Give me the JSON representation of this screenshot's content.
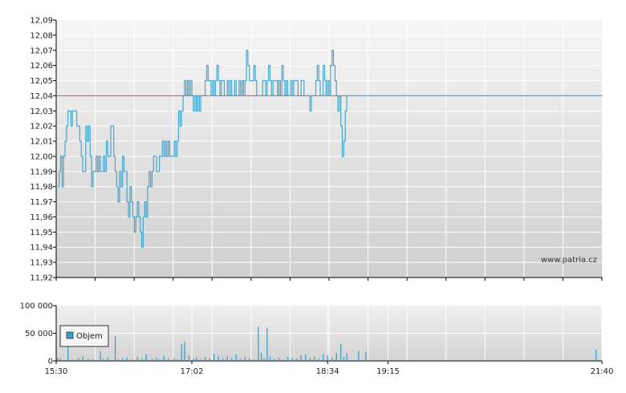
{
  "watermark": "www.patria.cz",
  "colors": {
    "price": "#4aa6cc",
    "reference": "#e04a3a",
    "volume": "#3aa0c8",
    "grid": "#ffffff",
    "bg_top": "#f4f4f4",
    "bg_bottom": "#d2d2d2"
  },
  "chart_data": [
    {
      "type": "line",
      "title": "",
      "xlabel": "",
      "ylabel": "",
      "x_ticks": [
        "15:30",
        "17:02",
        "18:34",
        "19:15",
        "21:40"
      ],
      "y_ticks": [
        "12,09",
        "12,08",
        "12,07",
        "12,06",
        "12,05",
        "12,04",
        "12,03",
        "12,02",
        "12,01",
        "12,00",
        "11,99",
        "11,98",
        "11,97",
        "11,96",
        "11,95",
        "11,94",
        "11,93",
        "11,92"
      ],
      "ylim": [
        11.92,
        12.09
      ],
      "xlim": [
        "15:30",
        "21:40"
      ],
      "grid": true,
      "reference_line": 12.04,
      "series": [
        {
          "points": [
            [
              "15:30",
              11.98
            ],
            [
              "15:32",
              11.99
            ],
            [
              "15:33",
              12.0
            ],
            [
              "15:34",
              11.98
            ],
            [
              "15:35",
              12.0
            ],
            [
              "15:36",
              12.01
            ],
            [
              "15:37",
              12.02
            ],
            [
              "15:38",
              12.03
            ],
            [
              "15:40",
              12.02
            ],
            [
              "15:41",
              12.03
            ],
            [
              "15:43",
              12.03
            ],
            [
              "15:44",
              12.02
            ],
            [
              "15:45",
              12.02
            ],
            [
              "15:46",
              12.01
            ],
            [
              "15:47",
              12.0
            ],
            [
              "15:48",
              11.99
            ],
            [
              "15:49",
              11.99
            ],
            [
              "15:50",
              12.02
            ],
            [
              "15:51",
              12.01
            ],
            [
              "15:52",
              12.02
            ],
            [
              "15:53",
              12.0
            ],
            [
              "15:54",
              11.98
            ],
            [
              "15:55",
              11.99
            ],
            [
              "15:56",
              11.99
            ],
            [
              "15:57",
              12.0
            ],
            [
              "15:58",
              11.99
            ],
            [
              "15:59",
              12.0
            ],
            [
              "16:00",
              11.99
            ],
            [
              "16:02",
              12.0
            ],
            [
              "16:03",
              11.99
            ],
            [
              "16:04",
              12.01
            ],
            [
              "16:05",
              12.0
            ],
            [
              "16:07",
              12.02
            ],
            [
              "16:08",
              12.02
            ],
            [
              "16:09",
              12.0
            ],
            [
              "16:10",
              11.99
            ],
            [
              "16:11",
              11.98
            ],
            [
              "16:12",
              11.97
            ],
            [
              "16:13",
              11.99
            ],
            [
              "16:14",
              11.98
            ],
            [
              "16:15",
              12.0
            ],
            [
              "16:16",
              11.99
            ],
            [
              "16:18",
              11.97
            ],
            [
              "16:19",
              11.96
            ],
            [
              "16:20",
              11.98
            ],
            [
              "16:21",
              11.97
            ],
            [
              "16:22",
              11.96
            ],
            [
              "16:23",
              11.95
            ],
            [
              "16:24",
              11.96
            ],
            [
              "16:25",
              11.97
            ],
            [
              "16:26",
              11.96
            ],
            [
              "16:27",
              11.95
            ],
            [
              "16:28",
              11.94
            ],
            [
              "16:29",
              11.96
            ],
            [
              "16:30",
              11.97
            ],
            [
              "16:31",
              11.96
            ],
            [
              "16:32",
              11.98
            ],
            [
              "16:33",
              11.99
            ],
            [
              "16:34",
              11.98
            ],
            [
              "16:35",
              11.99
            ],
            [
              "16:36",
              12.0
            ],
            [
              "16:38",
              11.99
            ],
            [
              "16:40",
              12.0
            ],
            [
              "16:41",
              12.0
            ],
            [
              "16:42",
              12.01
            ],
            [
              "16:43",
              12.0
            ],
            [
              "16:44",
              12.01
            ],
            [
              "16:45",
              12.0
            ],
            [
              "16:46",
              12.01
            ],
            [
              "16:47",
              12.0
            ],
            [
              "16:48",
              12.0
            ],
            [
              "16:50",
              12.01
            ],
            [
              "16:51",
              12.0
            ],
            [
              "16:52",
              12.01
            ],
            [
              "16:53",
              12.03
            ],
            [
              "16:54",
              12.02
            ],
            [
              "16:55",
              12.03
            ],
            [
              "16:56",
              12.04
            ],
            [
              "16:57",
              12.05
            ],
            [
              "16:58",
              12.04
            ],
            [
              "16:59",
              12.05
            ],
            [
              "17:00",
              12.04
            ],
            [
              "17:01",
              12.05
            ],
            [
              "17:02",
              12.04
            ],
            [
              "17:03",
              12.03
            ],
            [
              "17:04",
              12.04
            ],
            [
              "17:05",
              12.03
            ],
            [
              "17:06",
              12.04
            ],
            [
              "17:07",
              12.03
            ],
            [
              "17:08",
              12.04
            ],
            [
              "17:09",
              12.04
            ],
            [
              "17:10",
              12.04
            ],
            [
              "17:11",
              12.05
            ],
            [
              "17:12",
              12.06
            ],
            [
              "17:13",
              12.05
            ],
            [
              "17:14",
              12.05
            ],
            [
              "17:15",
              12.04
            ],
            [
              "17:16",
              12.05
            ],
            [
              "17:17",
              12.04
            ],
            [
              "17:18",
              12.05
            ],
            [
              "17:19",
              12.06
            ],
            [
              "17:20",
              12.05
            ],
            [
              "17:21",
              12.04
            ],
            [
              "17:22",
              12.05
            ],
            [
              "17:24",
              12.04
            ],
            [
              "17:26",
              12.05
            ],
            [
              "17:27",
              12.04
            ],
            [
              "17:28",
              12.05
            ],
            [
              "17:29",
              12.04
            ],
            [
              "17:30",
              12.04
            ],
            [
              "17:31",
              12.05
            ],
            [
              "17:32",
              12.04
            ],
            [
              "17:33",
              12.04
            ],
            [
              "17:34",
              12.05
            ],
            [
              "17:35",
              12.04
            ],
            [
              "17:36",
              12.05
            ],
            [
              "17:37",
              12.04
            ],
            [
              "17:38",
              12.05
            ],
            [
              "17:39",
              12.07
            ],
            [
              "17:40",
              12.06
            ],
            [
              "17:41",
              12.05
            ],
            [
              "17:42",
              12.05
            ],
            [
              "17:44",
              12.06
            ],
            [
              "17:45",
              12.05
            ],
            [
              "17:46",
              12.04
            ],
            [
              "17:48",
              12.04
            ],
            [
              "17:50",
              12.05
            ],
            [
              "17:52",
              12.04
            ],
            [
              "17:53",
              12.05
            ],
            [
              "17:54",
              12.06
            ],
            [
              "17:55",
              12.05
            ],
            [
              "17:56",
              12.04
            ],
            [
              "17:57",
              12.05
            ],
            [
              "17:58",
              12.05
            ],
            [
              "18:00",
              12.04
            ],
            [
              "18:01",
              12.05
            ],
            [
              "18:02",
              12.04
            ],
            [
              "18:03",
              12.06
            ],
            [
              "18:04",
              12.05
            ],
            [
              "18:05",
              12.04
            ],
            [
              "18:06",
              12.05
            ],
            [
              "18:07",
              12.04
            ],
            [
              "18:08",
              12.04
            ],
            [
              "18:09",
              12.05
            ],
            [
              "18:10",
              12.04
            ],
            [
              "18:11",
              12.05
            ],
            [
              "18:12",
              12.05
            ],
            [
              "18:14",
              12.04
            ],
            [
              "18:16",
              12.05
            ],
            [
              "18:18",
              12.04
            ],
            [
              "18:20",
              12.04
            ],
            [
              "18:21",
              12.04
            ],
            [
              "18:22",
              12.03
            ],
            [
              "18:23",
              12.04
            ],
            [
              "18:25",
              12.04
            ],
            [
              "18:26",
              12.05
            ],
            [
              "18:27",
              12.06
            ],
            [
              "18:28",
              12.05
            ],
            [
              "18:29",
              12.04
            ],
            [
              "18:30",
              12.04
            ],
            [
              "18:31",
              12.06
            ],
            [
              "18:32",
              12.05
            ],
            [
              "18:33",
              12.04
            ],
            [
              "18:34",
              12.05
            ],
            [
              "18:35",
              12.04
            ],
            [
              "18:36",
              12.06
            ],
            [
              "18:37",
              12.07
            ],
            [
              "18:38",
              12.06
            ],
            [
              "18:39",
              12.05
            ],
            [
              "18:40",
              12.04
            ],
            [
              "18:41",
              12.03
            ],
            [
              "18:42",
              12.04
            ],
            [
              "18:43",
              12.02
            ],
            [
              "18:44",
              12.0
            ],
            [
              "18:45",
              12.01
            ],
            [
              "18:46",
              12.03
            ],
            [
              "18:47",
              12.04
            ],
            [
              "21:40",
              12.04
            ]
          ]
        }
      ]
    },
    {
      "type": "bar",
      "title": "",
      "x_ticks": [
        "15:30",
        "17:02",
        "18:34",
        "19:15",
        "21:40"
      ],
      "y_ticks": [
        "100 000",
        "50 000",
        "0"
      ],
      "ylim": [
        0,
        100000
      ],
      "xlim": [
        "15:30",
        "21:40"
      ],
      "grid": true,
      "legend": {
        "label": "Objem",
        "position": "top-left"
      },
      "series": [
        {
          "name": "Objem",
          "points": [
            [
              "15:31",
              6000
            ],
            [
              "15:33",
              4000
            ],
            [
              "15:38",
              35000
            ],
            [
              "15:41",
              3000
            ],
            [
              "15:45",
              5000
            ],
            [
              "15:48",
              8000
            ],
            [
              "15:52",
              4000
            ],
            [
              "15:55",
              3000
            ],
            [
              "16:00",
              18000
            ],
            [
              "16:02",
              4000
            ],
            [
              "16:05",
              7000
            ],
            [
              "16:10",
              45000
            ],
            [
              "16:12",
              3000
            ],
            [
              "16:15",
              5000
            ],
            [
              "16:18",
              6000
            ],
            [
              "16:22",
              3000
            ],
            [
              "16:25",
              8000
            ],
            [
              "16:28",
              5000
            ],
            [
              "16:31",
              12000
            ],
            [
              "16:35",
              4000
            ],
            [
              "16:38",
              6000
            ],
            [
              "16:40",
              3000
            ],
            [
              "16:43",
              9000
            ],
            [
              "16:46",
              4000
            ],
            [
              "16:50",
              5000
            ],
            [
              "16:52",
              3000
            ],
            [
              "16:55",
              30000
            ],
            [
              "16:57",
              34000
            ],
            [
              "17:00",
              10000
            ],
            [
              "17:03",
              4000
            ],
            [
              "17:05",
              6000
            ],
            [
              "17:08",
              2000
            ],
            [
              "17:11",
              7000
            ],
            [
              "17:14",
              4000
            ],
            [
              "17:17",
              13000
            ],
            [
              "17:20",
              8000
            ],
            [
              "17:23",
              5000
            ],
            [
              "17:26",
              9000
            ],
            [
              "17:29",
              6000
            ],
            [
              "17:32",
              12000
            ],
            [
              "17:35",
              4000
            ],
            [
              "17:38",
              7000
            ],
            [
              "17:41",
              5000
            ],
            [
              "17:44",
              3000
            ],
            [
              "17:47",
              62000
            ],
            [
              "17:49",
              14000
            ],
            [
              "17:51",
              5000
            ],
            [
              "17:53",
              60000
            ],
            [
              "17:55",
              9000
            ],
            [
              "17:58",
              4000
            ],
            [
              "18:01",
              6000
            ],
            [
              "18:04",
              3000
            ],
            [
              "18:07",
              7000
            ],
            [
              "18:10",
              5000
            ],
            [
              "18:13",
              4000
            ],
            [
              "18:16",
              10000
            ],
            [
              "18:19",
              12000
            ],
            [
              "18:22",
              5000
            ],
            [
              "18:25",
              8000
            ],
            [
              "18:28",
              4000
            ],
            [
              "18:31",
              12000
            ],
            [
              "18:34",
              10000
            ],
            [
              "18:37",
              5000
            ],
            [
              "18:40",
              14000
            ],
            [
              "18:43",
              30000
            ],
            [
              "18:45",
              8000
            ],
            [
              "18:47",
              14000
            ],
            [
              "18:55",
              18000
            ],
            [
              "19:00",
              17000
            ],
            [
              "21:36",
              20000
            ]
          ]
        }
      ]
    }
  ]
}
